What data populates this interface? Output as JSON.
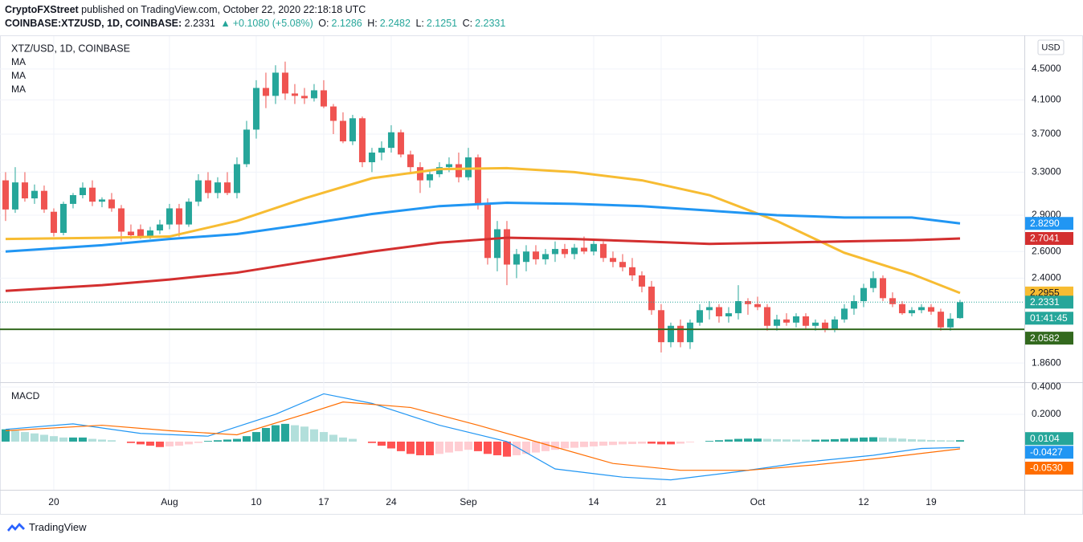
{
  "header": {
    "publisher": "CryptoFXStreet",
    "published": "published on TradingView.com, October 22, 2020 22:18:18 UTC",
    "symbol": "COINBASE:XTZUSD, 1D, COINBASE:",
    "change": "+0.1080 (+5.08%)",
    "ohlc_labels": [
      "O:",
      "H:",
      "L:",
      "C:"
    ]
  },
  "footer": {
    "brand": "TradingView"
  },
  "chart_data": [
    {
      "type": "candlestick",
      "title": "XTZ/USD, 1D, COINBASE",
      "currency": "USD",
      "up_color": "#26a69a",
      "down_color": "#ef5350",
      "log_scale": true,
      "grid": true,
      "xlim": [
        -5.58,
        100.67
      ],
      "ylim": [
        1.76,
        4.93
      ],
      "yticks": [
        {
          "value": 4.5,
          "label": "4.5000"
        },
        {
          "value": 4.1,
          "label": "4.1000"
        },
        {
          "value": 3.7,
          "label": "3.7000"
        },
        {
          "value": 3.3,
          "label": "3.3000"
        },
        {
          "value": 2.9,
          "label": "2.9000"
        },
        {
          "value": 2.6,
          "label": "2.6000"
        },
        {
          "value": 2.4,
          "label": "2.4000"
        },
        {
          "value": 1.86,
          "label": "1.8600"
        }
      ],
      "xticks": [
        {
          "value": 0,
          "label": "20"
        },
        {
          "value": 12,
          "label": "Aug"
        },
        {
          "value": 21,
          "label": "10"
        },
        {
          "value": 28,
          "label": "17"
        },
        {
          "value": 35,
          "label": "24"
        },
        {
          "value": 43,
          "label": "Sep"
        },
        {
          "value": 56,
          "label": "14"
        },
        {
          "value": 63,
          "label": "21"
        },
        {
          "value": 73,
          "label": "Oct"
        },
        {
          "value": 84,
          "label": "12"
        },
        {
          "value": 91,
          "label": "19"
        }
      ],
      "x": [
        -5,
        -4,
        -3,
        -2,
        -1,
        0,
        1,
        2,
        3,
        4,
        5,
        6,
        7,
        8,
        9,
        10,
        11,
        12,
        13,
        14,
        15,
        16,
        17,
        18,
        19,
        20,
        21,
        22,
        23,
        24,
        25,
        26,
        27,
        28,
        29,
        30,
        31,
        32,
        33,
        34,
        35,
        36,
        37,
        38,
        39,
        40,
        41,
        42,
        43,
        44,
        45,
        46,
        47,
        48,
        49,
        50,
        51,
        52,
        53,
        54,
        55,
        56,
        57,
        58,
        59,
        60,
        61,
        62,
        63,
        64,
        65,
        66,
        67,
        68,
        69,
        70,
        71,
        72,
        73,
        74,
        75,
        76,
        77,
        78,
        79,
        80,
        81,
        82,
        83,
        84,
        85,
        86,
        87,
        88,
        89,
        90,
        91,
        92,
        93,
        94
      ],
      "open": [
        3.22,
        2.95,
        3.2,
        3.05,
        3.12,
        2.93,
        2.75,
        3.0,
        3.08,
        3.15,
        3.02,
        3.04,
        2.96,
        2.76,
        2.78,
        2.72,
        2.77,
        2.82,
        2.96,
        2.82,
        3.02,
        3.22,
        3.1,
        3.2,
        3.1,
        3.38,
        3.75,
        4.25,
        4.15,
        4.45,
        4.18,
        4.15,
        4.12,
        4.22,
        4.02,
        3.85,
        3.62,
        3.88,
        3.4,
        3.5,
        3.55,
        3.72,
        3.48,
        3.35,
        3.22,
        3.28,
        3.35,
        3.38,
        3.25,
        3.45,
        3.0,
        2.55,
        2.78,
        2.5,
        2.52,
        2.6,
        2.54,
        2.58,
        2.62,
        2.58,
        2.63,
        2.6,
        2.66,
        2.55,
        2.52,
        2.48,
        2.42,
        2.34,
        2.18,
        1.98,
        2.08,
        1.98,
        2.1,
        2.18,
        2.2,
        2.14,
        2.16,
        2.24,
        2.22,
        2.2,
        2.08,
        2.12,
        2.1,
        2.14,
        2.08,
        2.1,
        2.06,
        2.12,
        2.19,
        2.24,
        2.33,
        2.4,
        2.26,
        2.22,
        2.16,
        2.18,
        2.2,
        2.17,
        2.07,
        2.1286
      ],
      "high": [
        3.3,
        3.35,
        3.3,
        3.18,
        3.17,
        2.96,
        3.02,
        3.1,
        3.2,
        3.22,
        3.06,
        3.1,
        2.99,
        2.82,
        2.82,
        2.8,
        2.86,
        3.0,
        3.0,
        3.05,
        3.28,
        3.3,
        3.25,
        3.3,
        3.45,
        3.85,
        4.35,
        4.45,
        4.55,
        4.6,
        4.3,
        4.25,
        4.3,
        4.35,
        4.05,
        3.95,
        3.92,
        3.9,
        3.55,
        3.62,
        3.8,
        3.75,
        3.52,
        3.4,
        3.32,
        3.4,
        3.45,
        3.5,
        3.55,
        3.48,
        3.05,
        2.85,
        2.85,
        2.62,
        2.65,
        2.65,
        2.62,
        2.68,
        2.66,
        2.66,
        2.72,
        2.7,
        2.68,
        2.6,
        2.58,
        2.55,
        2.45,
        2.38,
        2.22,
        2.1,
        2.12,
        2.12,
        2.22,
        2.24,
        2.22,
        2.2,
        2.35,
        2.26,
        2.27,
        2.22,
        2.15,
        2.16,
        2.16,
        2.16,
        2.12,
        2.12,
        2.14,
        2.22,
        2.28,
        2.36,
        2.45,
        2.42,
        2.3,
        2.24,
        2.2,
        2.22,
        2.22,
        2.19,
        2.16,
        2.2482
      ],
      "low": [
        2.85,
        2.92,
        3.02,
        3.0,
        2.92,
        2.72,
        2.73,
        2.96,
        3.05,
        2.98,
        2.97,
        2.93,
        2.68,
        2.7,
        2.7,
        2.7,
        2.74,
        2.78,
        2.72,
        2.8,
        2.98,
        3.05,
        3.05,
        3.08,
        3.05,
        3.35,
        3.65,
        4.0,
        4.05,
        4.1,
        4.05,
        4.05,
        4.08,
        4.0,
        3.7,
        3.6,
        3.58,
        3.35,
        3.3,
        3.42,
        3.5,
        3.45,
        3.3,
        3.1,
        3.15,
        3.25,
        3.3,
        3.2,
        3.22,
        2.95,
        2.5,
        2.45,
        2.35,
        2.4,
        2.45,
        2.5,
        2.5,
        2.52,
        2.55,
        2.54,
        2.58,
        2.57,
        2.52,
        2.48,
        2.45,
        2.38,
        2.3,
        2.15,
        1.92,
        1.95,
        1.95,
        1.94,
        2.08,
        2.12,
        2.1,
        2.1,
        2.12,
        2.15,
        2.18,
        2.05,
        2.05,
        2.08,
        2.07,
        2.06,
        2.05,
        2.04,
        2.04,
        2.1,
        2.15,
        2.2,
        2.3,
        2.24,
        2.2,
        2.15,
        2.14,
        2.16,
        2.15,
        2.05,
        2.05,
        2.1251
      ],
      "close": [
        2.95,
        3.2,
        3.05,
        3.12,
        2.95,
        2.75,
        3.0,
        3.08,
        3.15,
        3.02,
        3.04,
        2.96,
        2.76,
        2.73,
        2.72,
        2.77,
        2.82,
        2.96,
        2.82,
        3.02,
        3.22,
        3.1,
        3.2,
        3.1,
        3.38,
        3.75,
        4.25,
        4.15,
        4.45,
        4.18,
        4.15,
        4.12,
        4.22,
        4.02,
        3.85,
        3.62,
        3.88,
        3.4,
        3.5,
        3.55,
        3.72,
        3.48,
        3.35,
        3.22,
        3.28,
        3.35,
        3.38,
        3.25,
        3.45,
        3.0,
        2.55,
        2.78,
        2.5,
        2.58,
        2.6,
        2.54,
        2.58,
        2.62,
        2.58,
        2.63,
        2.6,
        2.66,
        2.55,
        2.52,
        2.48,
        2.42,
        2.34,
        2.18,
        1.98,
        2.08,
        1.98,
        2.1,
        2.18,
        2.2,
        2.14,
        2.16,
        2.24,
        2.22,
        2.2,
        2.08,
        2.12,
        2.1,
        2.14,
        2.08,
        2.1,
        2.06,
        2.12,
        2.19,
        2.24,
        2.33,
        2.4,
        2.26,
        2.22,
        2.16,
        2.18,
        2.2,
        2.17,
        2.07,
        2.1251,
        2.2331
      ],
      "close_label": "2.2331",
      "countdown": "01:41:45",
      "ma": [
        {
          "name": "MA",
          "color": "#f7bc32",
          "end_label": "2.2955",
          "x": [
            -5,
            5,
            12,
            19,
            26,
            33,
            40,
            47,
            54,
            61,
            68,
            75,
            82,
            89,
            94
          ],
          "values": [
            2.7,
            2.71,
            2.72,
            2.85,
            3.05,
            3.24,
            3.33,
            3.34,
            3.3,
            3.22,
            3.08,
            2.85,
            2.59,
            2.43,
            2.2955
          ]
        },
        {
          "name": "MA",
          "color": "#2196f3",
          "end_label": "2.8290",
          "x": [
            -5,
            5,
            12,
            19,
            26,
            33,
            40,
            47,
            54,
            61,
            68,
            75,
            82,
            89,
            94
          ],
          "values": [
            2.6,
            2.65,
            2.7,
            2.74,
            2.82,
            2.91,
            2.98,
            3.01,
            3.0,
            2.98,
            2.94,
            2.9,
            2.88,
            2.88,
            2.829
          ]
        },
        {
          "name": "MA",
          "color": "#d32f2f",
          "end_label": "2.7041",
          "x": [
            -5,
            5,
            12,
            19,
            26,
            33,
            40,
            47,
            54,
            61,
            68,
            75,
            82,
            89,
            94
          ],
          "values": [
            2.31,
            2.35,
            2.39,
            2.44,
            2.52,
            2.6,
            2.67,
            2.71,
            2.7,
            2.68,
            2.66,
            2.67,
            2.68,
            2.69,
            2.7041
          ]
        }
      ],
      "support": {
        "value": 2.0582,
        "label": "2.0582",
        "color": "#33691e"
      }
    },
    {
      "type": "macd",
      "title": "MACD",
      "ylim": [
        -0.353,
        0.435
      ],
      "yticks": [
        {
          "value": 0.4,
          "label": "0.4000"
        },
        {
          "value": 0.2,
          "label": "0.2000"
        }
      ],
      "histogram": {
        "colors": [
          "#26a69a",
          "#b2dfdb",
          "#ff5252",
          "#ffcdd2"
        ],
        "end_label": "0.0104",
        "values": [
          0.09,
          0.08,
          0.07,
          0.06,
          0.05,
          0.04,
          0.03,
          0.03,
          0.03,
          0.02,
          0.015,
          0.01,
          0,
          -0.01,
          -0.02,
          -0.03,
          -0.04,
          -0.035,
          -0.03,
          -0.02,
          -0.01,
          0.005,
          0.01,
          0.015,
          0.02,
          0.04,
          0.07,
          0.1,
          0.12,
          0.13,
          0.12,
          0.11,
          0.09,
          0.07,
          0.05,
          0.03,
          0.02,
          0,
          -0.01,
          -0.03,
          -0.05,
          -0.07,
          -0.09,
          -0.1,
          -0.1,
          -0.09,
          -0.08,
          -0.07,
          -0.06,
          -0.07,
          -0.09,
          -0.1,
          -0.11,
          -0.1,
          -0.09,
          -0.08,
          -0.07,
          -0.06,
          -0.05,
          -0.045,
          -0.04,
          -0.035,
          -0.03,
          -0.025,
          -0.02,
          -0.018,
          -0.015,
          -0.015,
          -0.02,
          -0.02,
          -0.015,
          -0.005,
          0,
          0.005,
          0.01,
          0.015,
          0.02,
          0.022,
          0.022,
          0.02,
          0.018,
          0.016,
          0.015,
          0.014,
          0.014,
          0.015,
          0.018,
          0.022,
          0.026,
          0.03,
          0.032,
          0.03,
          0.026,
          0.022,
          0.018,
          0.015,
          0.012,
          0.01,
          0.009,
          0.0104
        ]
      },
      "series": [
        {
          "color": "#2196f3",
          "end_label": "-0.0427",
          "x": [
            -5,
            2,
            9,
            16,
            23,
            28,
            33,
            40,
            47,
            52,
            59,
            64,
            71,
            78,
            85,
            90,
            94
          ],
          "values": [
            0.09,
            0.13,
            0.06,
            0.04,
            0.2,
            0.35,
            0.28,
            0.12,
            0.0,
            -0.2,
            -0.26,
            -0.28,
            -0.22,
            -0.15,
            -0.1,
            -0.05,
            -0.0427
          ]
        },
        {
          "color": "#ff6d00",
          "end_label": "-0.0530",
          "x": [
            -5,
            5,
            12,
            19,
            26,
            30,
            37,
            44,
            51,
            58,
            65,
            72,
            79,
            86,
            94
          ],
          "values": [
            0.08,
            0.12,
            0.08,
            0.05,
            0.2,
            0.29,
            0.25,
            0.12,
            -0.02,
            -0.16,
            -0.21,
            -0.21,
            -0.17,
            -0.12,
            -0.053
          ]
        }
      ]
    }
  ]
}
